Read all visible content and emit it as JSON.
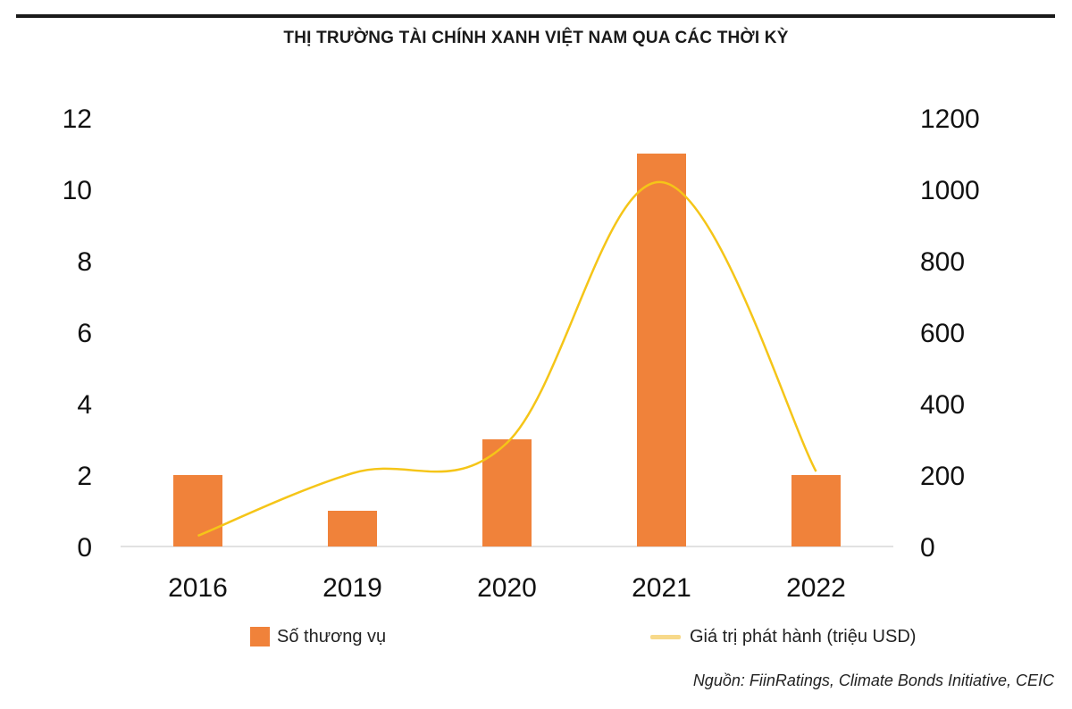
{
  "title": "THỊ TRƯỜNG TÀI CHÍNH XANH VIỆT NAM QUA CÁC THỜI KỲ",
  "source": "Nguồn: FiinRatings, Climate Bonds Initiative, CEIC",
  "colors": {
    "bar": "#F0823A",
    "line": "#F5C518",
    "line_legend": "#F7D98A",
    "axis": "#d9d9d9",
    "rule": "#1a1a1a"
  },
  "legend": {
    "bar_label": "Số thương vụ",
    "line_label": "Giá trị phát hành (triệu USD)"
  },
  "chart_data": {
    "type": "bar",
    "categories": [
      "2016",
      "2019",
      "2020",
      "2021",
      "2022"
    ],
    "series": [
      {
        "name": "Số thương vụ",
        "type": "bar",
        "axis": "left",
        "values": [
          2,
          1,
          3,
          11,
          2
        ]
      },
      {
        "name": "Giá trị phát hành (triệu USD)",
        "type": "line",
        "smooth": true,
        "axis": "right",
        "values": [
          30,
          205,
          290,
          1020,
          210
        ]
      }
    ],
    "y_left": {
      "range": [
        0,
        12
      ],
      "ticks": [
        0,
        2,
        4,
        6,
        8,
        10,
        12
      ]
    },
    "y_right": {
      "range": [
        0,
        1200
      ],
      "ticks": [
        0,
        200,
        400,
        600,
        800,
        1000,
        1200
      ]
    },
    "grid": false,
    "legend_position": "bottom"
  }
}
